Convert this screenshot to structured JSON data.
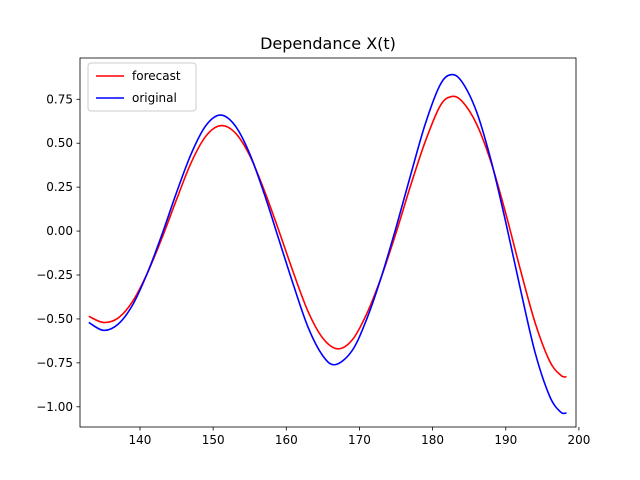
{
  "chart_data": {
    "type": "line",
    "title": "Dependance X(t)",
    "xlabel": "",
    "ylabel": "",
    "xlim": [
      131.8,
      199.6
    ],
    "ylim": [
      -1.115,
      0.985
    ],
    "xticks": [
      140,
      150,
      160,
      170,
      180,
      190,
      200
    ],
    "yticks": [
      -1.0,
      -0.75,
      -0.5,
      -0.25,
      0.0,
      0.25,
      0.5,
      0.75
    ],
    "ytick_labels": [
      "−1.00",
      "−0.75",
      "−0.50",
      "−0.25",
      "0.00",
      "0.25",
      "0.50",
      "0.75"
    ],
    "grid": false,
    "legend_position": "upper-left",
    "series": [
      {
        "name": "forecast",
        "color": "#ff0000",
        "points": [
          [
            133.0,
            -0.485
          ],
          [
            135.0,
            -0.52
          ],
          [
            137.0,
            -0.495
          ],
          [
            139.0,
            -0.4
          ],
          [
            141.0,
            -0.24
          ],
          [
            143.0,
            -0.04
          ],
          [
            145.0,
            0.18
          ],
          [
            147.0,
            0.39
          ],
          [
            149.0,
            0.54
          ],
          [
            151.0,
            0.6
          ],
          [
            153.0,
            0.56
          ],
          [
            155.0,
            0.43
          ],
          [
            157.0,
            0.23
          ],
          [
            159.0,
            0.0
          ],
          [
            161.0,
            -0.24
          ],
          [
            163.0,
            -0.46
          ],
          [
            165.0,
            -0.61
          ],
          [
            167.0,
            -0.67
          ],
          [
            169.0,
            -0.62
          ],
          [
            171.0,
            -0.47
          ],
          [
            173.0,
            -0.26
          ],
          [
            175.0,
            -0.01
          ],
          [
            177.0,
            0.26
          ],
          [
            179.0,
            0.51
          ],
          [
            181.0,
            0.71
          ],
          [
            182.5,
            0.765
          ],
          [
            184.0,
            0.74
          ],
          [
            186.0,
            0.61
          ],
          [
            188.0,
            0.39
          ],
          [
            190.0,
            0.1
          ],
          [
            192.0,
            -0.22
          ],
          [
            194.0,
            -0.52
          ],
          [
            196.0,
            -0.74
          ],
          [
            197.5,
            -0.82
          ],
          [
            198.3,
            -0.83
          ]
        ]
      },
      {
        "name": "original",
        "color": "#0000ff",
        "points": [
          [
            133.0,
            -0.52
          ],
          [
            135.0,
            -0.565
          ],
          [
            137.0,
            -0.53
          ],
          [
            139.0,
            -0.42
          ],
          [
            141.0,
            -0.24
          ],
          [
            143.0,
            -0.02
          ],
          [
            145.0,
            0.22
          ],
          [
            147.0,
            0.44
          ],
          [
            149.0,
            0.6
          ],
          [
            151.0,
            0.66
          ],
          [
            153.0,
            0.6
          ],
          [
            155.0,
            0.44
          ],
          [
            157.0,
            0.21
          ],
          [
            159.0,
            -0.05
          ],
          [
            161.0,
            -0.31
          ],
          [
            163.0,
            -0.55
          ],
          [
            165.0,
            -0.71
          ],
          [
            166.7,
            -0.76
          ],
          [
            169.0,
            -0.68
          ],
          [
            171.0,
            -0.5
          ],
          [
            173.0,
            -0.26
          ],
          [
            175.0,
            0.02
          ],
          [
            177.0,
            0.32
          ],
          [
            179.0,
            0.61
          ],
          [
            181.0,
            0.83
          ],
          [
            182.5,
            0.89
          ],
          [
            184.0,
            0.85
          ],
          [
            186.0,
            0.68
          ],
          [
            188.0,
            0.4
          ],
          [
            190.0,
            0.05
          ],
          [
            192.0,
            -0.33
          ],
          [
            194.0,
            -0.69
          ],
          [
            196.0,
            -0.94
          ],
          [
            197.5,
            -1.03
          ],
          [
            198.3,
            -1.035
          ]
        ]
      }
    ]
  }
}
